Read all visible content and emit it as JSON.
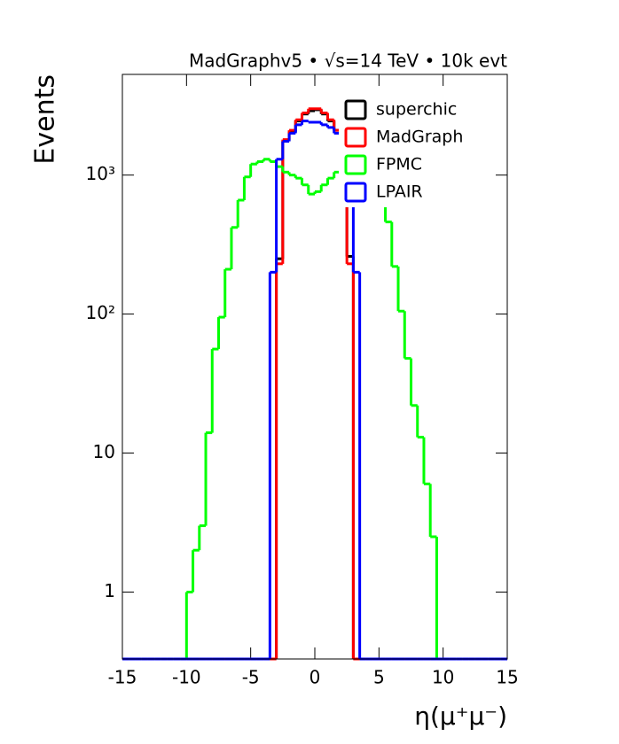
{
  "chart_data": {
    "type": "histogram",
    "title": "MadGraphv5 • √s=14 TeV • 10k evt",
    "x_label": "η(μ⁺μ⁻)",
    "y_label": "Events",
    "bins": [
      -15,
      -14.5,
      -14,
      -13.5,
      -13,
      -12.5,
      -12,
      -11.5,
      -11,
      -10.5,
      -10,
      -9.5,
      -9,
      -8.5,
      -8,
      -7.5,
      -7,
      -6.5,
      -6,
      -5.5,
      -5,
      -4.5,
      -4,
      -3.5,
      -3,
      -2.5,
      -2,
      -1.5,
      -1,
      -0.5,
      0,
      0.5,
      1,
      1.5,
      2,
      2.5,
      3,
      3.5,
      4,
      4.5,
      5,
      5.5,
      6,
      6.5,
      7,
      7.5,
      8,
      8.5,
      9,
      9.5,
      10,
      10.5,
      11,
      11.5,
      12,
      12.5,
      13,
      13.5,
      14,
      14.5,
      15
    ],
    "series": [
      {
        "name": "superchic",
        "color": "#000000",
        "values": [
          0,
          0,
          0,
          0,
          0,
          0,
          0,
          0,
          0,
          0,
          0,
          0,
          0,
          0,
          0,
          0,
          0,
          0,
          0,
          0,
          0,
          0,
          0,
          0,
          250,
          1750,
          2050,
          2450,
          2750,
          2900,
          2950,
          2750,
          2450,
          2100,
          1750,
          260,
          0,
          0,
          0,
          0,
          0,
          0,
          0,
          0,
          0,
          0,
          0,
          0,
          0,
          0,
          0,
          0,
          0,
          0,
          0,
          0,
          0,
          0,
          0,
          0
        ]
      },
      {
        "name": "MadGraph",
        "color": "#ff0000",
        "values": [
          0,
          0,
          0,
          0,
          0,
          0,
          0,
          0,
          0,
          0,
          0,
          0,
          0,
          0,
          0,
          0,
          0,
          0,
          0,
          0,
          0,
          0,
          0,
          0,
          230,
          1800,
          2100,
          2500,
          2800,
          3000,
          3000,
          2800,
          2500,
          2100,
          1800,
          230,
          0,
          0,
          0,
          0,
          0,
          0,
          0,
          0,
          0,
          0,
          0,
          0,
          0,
          0,
          0,
          0,
          0,
          0,
          0,
          0,
          0,
          0,
          0,
          0
        ]
      },
      {
        "name": "FPMC",
        "color": "#00ff00",
        "values": [
          0,
          0,
          0,
          0,
          0,
          0,
          0,
          0,
          0,
          0,
          1,
          2,
          3,
          14,
          56,
          95,
          210,
          420,
          660,
          970,
          1200,
          1250,
          1300,
          1250,
          1150,
          1050,
          1000,
          950,
          850,
          730,
          760,
          850,
          950,
          1050,
          1150,
          1250,
          1300,
          1250,
          1200,
          950,
          620,
          460,
          220,
          105,
          48,
          22,
          13,
          6,
          2.5,
          0,
          0,
          0,
          0,
          0,
          0,
          0,
          0,
          0,
          0,
          0
        ]
      },
      {
        "name": "LPAIR",
        "color": "#0000ff",
        "values": [
          0,
          0,
          0,
          0,
          0,
          0,
          0,
          0,
          0,
          0,
          0,
          0,
          0,
          0,
          0,
          0,
          0,
          0,
          0,
          0,
          0,
          0,
          0,
          200,
          1300,
          1750,
          2000,
          2300,
          2450,
          2400,
          2400,
          2300,
          2200,
          2000,
          1750,
          1300,
          200,
          0,
          0,
          0,
          0,
          0,
          0,
          0,
          0,
          0,
          0,
          0,
          0,
          0,
          0,
          0,
          0,
          0,
          0,
          0,
          0,
          0,
          0,
          0
        ]
      }
    ],
    "xlim": [
      -15,
      15
    ],
    "xticks": [
      -15,
      -10,
      -5,
      0,
      5,
      10,
      15
    ],
    "ylim": [
      0.33,
      5300
    ],
    "log_y": true,
    "yticks": [
      1,
      10,
      {
        "value": 100,
        "label": "10²"
      },
      {
        "value": 1000,
        "label": "10³"
      }
    ],
    "legend": "top-right"
  }
}
